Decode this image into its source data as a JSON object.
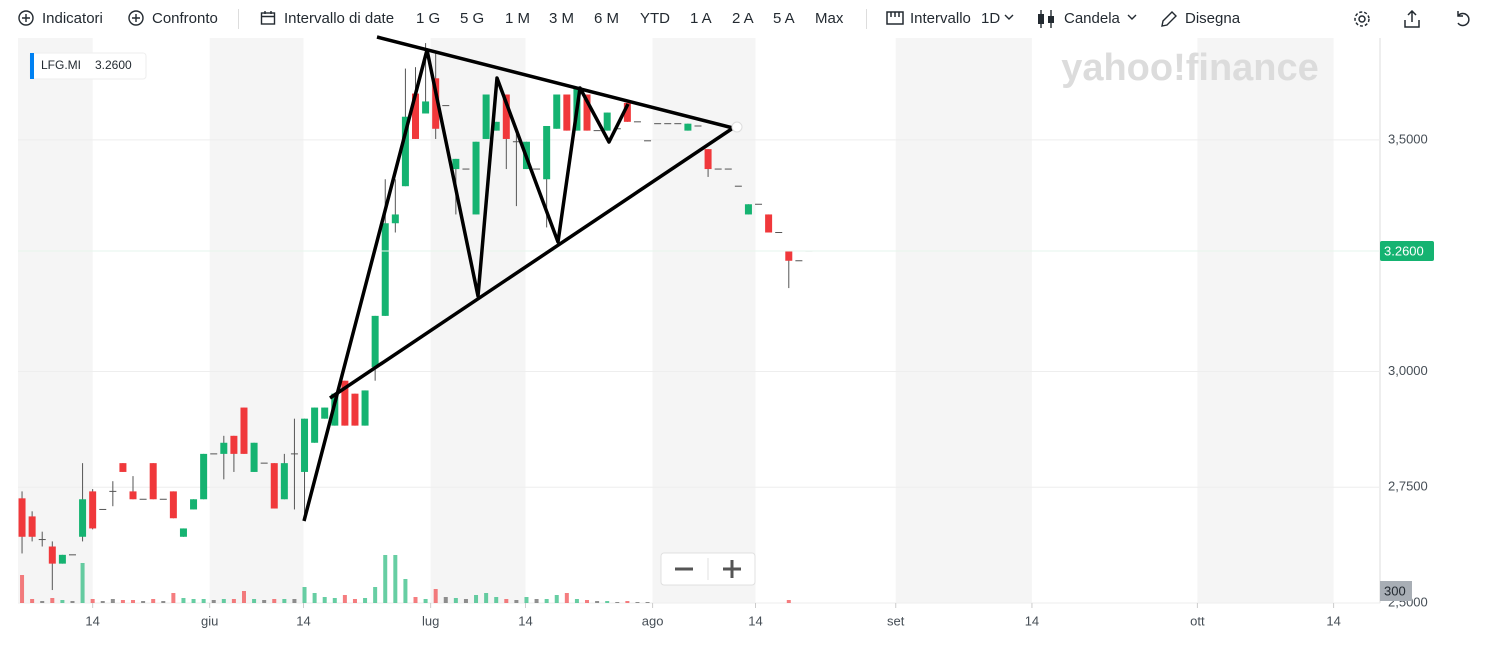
{
  "toolbar": {
    "indicators": "Indicatori",
    "compare": "Confronto",
    "date_range": "Intervallo di date",
    "ranges": [
      "1 G",
      "5 G",
      "1 M",
      "3 M",
      "6 M",
      "YTD",
      "1 A",
      "2 A",
      "5 A",
      "Max"
    ],
    "interval": "Intervallo",
    "interval_value": "1D",
    "chart_type": "Candela",
    "draw": "Disegna"
  },
  "chart_data": {
    "type": "candlestick",
    "symbol": "LFG.MI",
    "last_price_label": "3.2600",
    "watermark": "yahoo!finance",
    "up_color": "#15b371",
    "down_color": "#f0383b",
    "grid": true,
    "x": [
      0,
      1,
      2,
      3,
      4,
      5,
      6,
      7,
      8,
      9,
      10,
      11,
      12,
      13,
      14,
      15,
      16,
      17,
      18,
      19,
      20,
      21,
      22,
      23,
      24,
      25,
      26,
      27,
      28,
      29,
      30,
      31,
      32,
      33,
      34,
      35,
      36,
      37,
      38,
      39,
      40,
      41,
      42,
      43,
      44,
      45,
      46,
      47,
      48,
      49,
      50,
      51,
      52,
      53,
      54,
      55,
      56,
      57,
      58,
      59,
      60,
      61,
      62,
      63,
      64,
      65,
      66,
      67,
      68,
      69,
      70,
      71,
      72,
      73,
      74,
      75,
      76,
      77,
      78
    ],
    "open": [
      2.726,
      2.687,
      2.637,
      2.622,
      2.585,
      2.604,
      2.643,
      2.741,
      2.702,
      2.741,
      2.802,
      2.741,
      2.724,
      2.802,
      2.724,
      2.741,
      2.643,
      2.702,
      2.724,
      2.822,
      2.822,
      2.861,
      2.922,
      2.783,
      2.802,
      2.802,
      2.724,
      2.822,
      2.783,
      2.846,
      2.898,
      2.883,
      2.98,
      2.952,
      2.883,
      3.009,
      3.12,
      3.32,
      3.4,
      3.6,
      3.557,
      3.633,
      3.574,
      3.437,
      3.437,
      3.339,
      3.502,
      3.52,
      3.598,
      3.496,
      3.437,
      3.437,
      3.415,
      3.524,
      3.598,
      3.52,
      3.598,
      3.52,
      3.52,
      3.524,
      3.58,
      3.539,
      3.498,
      3.535,
      3.535,
      3.535,
      3.52,
      3.53,
      3.48,
      3.437,
      3.437,
      3.4,
      3.339,
      3.361,
      3.339,
      3.3,
      3.259,
      3.239,
      3.26
    ],
    "high": [
      2.741,
      2.698,
      2.654,
      2.633,
      2.604,
      2.604,
      2.802,
      2.746,
      2.702,
      2.763,
      2.802,
      2.774,
      2.724,
      2.802,
      2.724,
      2.741,
      2.661,
      2.724,
      2.822,
      2.822,
      2.861,
      2.861,
      2.922,
      2.846,
      2.802,
      2.802,
      2.822,
      2.898,
      2.898,
      2.922,
      2.922,
      2.952,
      2.98,
      2.952,
      2.959,
      3.12,
      3.415,
      3.415,
      3.654,
      3.657,
      3.709,
      3.687,
      3.574,
      3.459,
      3.437,
      3.496,
      3.598,
      3.539,
      3.598,
      3.513,
      3.496,
      3.437,
      3.53,
      3.598,
      3.598,
      3.615,
      3.598,
      3.52,
      3.559,
      3.524,
      3.58,
      3.539,
      3.498,
      3.535,
      3.535,
      3.535,
      3.535,
      3.53,
      3.48,
      3.437,
      3.437,
      3.4,
      3.361,
      3.361,
      3.339,
      3.3,
      3.259,
      3.239,
      3.26
    ],
    "low": [
      2.607,
      2.633,
      2.622,
      2.528,
      2.585,
      2.604,
      2.633,
      2.659,
      2.702,
      2.709,
      2.783,
      2.724,
      2.724,
      2.724,
      2.724,
      2.683,
      2.643,
      2.702,
      2.724,
      2.822,
      2.767,
      2.783,
      2.822,
      2.783,
      2.802,
      2.704,
      2.724,
      2.702,
      2.687,
      2.846,
      2.898,
      2.883,
      2.883,
      2.883,
      2.883,
      2.98,
      3.12,
      3.3,
      3.4,
      3.502,
      3.557,
      3.502,
      3.574,
      3.339,
      3.437,
      3.339,
      3.502,
      3.52,
      3.437,
      3.357,
      3.437,
      3.437,
      3.311,
      3.524,
      3.52,
      3.52,
      3.52,
      3.52,
      3.52,
      3.524,
      3.539,
      3.539,
      3.498,
      3.535,
      3.535,
      3.535,
      3.52,
      3.53,
      3.42,
      3.437,
      3.437,
      3.4,
      3.339,
      3.361,
      3.3,
      3.3,
      3.18,
      3.239,
      3.26
    ],
    "close": [
      2.643,
      2.643,
      2.637,
      2.585,
      2.604,
      2.604,
      2.724,
      2.661,
      2.702,
      2.741,
      2.783,
      2.724,
      2.724,
      2.724,
      2.724,
      2.683,
      2.661,
      2.724,
      2.822,
      2.822,
      2.846,
      2.822,
      2.822,
      2.846,
      2.802,
      2.704,
      2.802,
      2.822,
      2.898,
      2.922,
      2.922,
      2.952,
      2.883,
      2.883,
      2.959,
      3.12,
      3.32,
      3.339,
      3.55,
      3.502,
      3.583,
      3.524,
      3.574,
      3.459,
      3.437,
      3.496,
      3.598,
      3.539,
      3.502,
      3.496,
      3.496,
      3.437,
      3.53,
      3.598,
      3.52,
      3.615,
      3.52,
      3.52,
      3.559,
      3.524,
      3.539,
      3.539,
      3.498,
      3.535,
      3.535,
      3.535,
      3.535,
      3.53,
      3.437,
      3.437,
      3.437,
      3.4,
      3.361,
      3.361,
      3.3,
      3.3,
      3.239,
      3.239,
      3.26
    ],
    "volume": [
      700,
      100,
      50,
      125,
      75,
      50,
      1000,
      100,
      50,
      100,
      75,
      75,
      50,
      100,
      50,
      250,
      125,
      100,
      100,
      75,
      100,
      100,
      300,
      100,
      75,
      100,
      100,
      100,
      400,
      250,
      150,
      125,
      200,
      100,
      125,
      400,
      1200,
      1200,
      600,
      150,
      100,
      350,
      150,
      125,
      100,
      200,
      250,
      150,
      100,
      75,
      150,
      100,
      100,
      200,
      250,
      100,
      75,
      50,
      50,
      25,
      50,
      25,
      25,
      0,
      0,
      0,
      0,
      0,
      0,
      0,
      0,
      0,
      0,
      0,
      0,
      0,
      75,
      0,
      0
    ],
    "xlim": [
      -0.4,
      134.6
    ],
    "xticks": [
      {
        "value": 7,
        "label": "14"
      },
      {
        "value": 18.6,
        "label": "giu"
      },
      {
        "value": 27.9,
        "label": "14"
      },
      {
        "value": 40.5,
        "label": "lug"
      },
      {
        "value": 49.9,
        "label": "14"
      },
      {
        "value": 62.5,
        "label": "ago"
      },
      {
        "value": 72.7,
        "label": "14"
      },
      {
        "value": 86.6,
        "label": "set"
      },
      {
        "value": 100.1,
        "label": "14"
      },
      {
        "value": 116.5,
        "label": "ott"
      },
      {
        "value": 130,
        "label": "14"
      }
    ],
    "ylim": [
      2.5,
      3.72
    ],
    "yticks": [
      {
        "value": 2.5,
        "label": "2,5000"
      },
      {
        "value": 2.75,
        "label": "2,7500"
      },
      {
        "value": 3,
        "label": "3,0000"
      },
      {
        "value": 3.5,
        "label": "3,5000"
      }
    ],
    "volume_lim": [
      0,
      2500
    ],
    "volume_ticks": [
      300
    ]
  }
}
